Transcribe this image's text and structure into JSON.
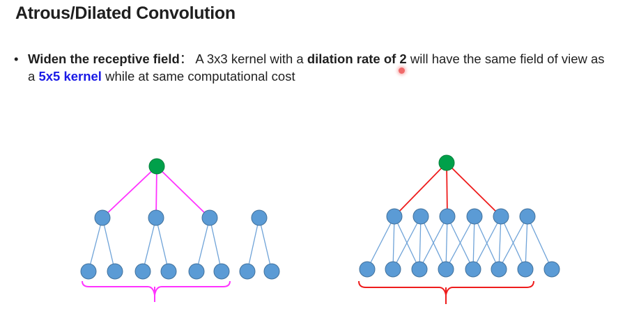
{
  "slide": {
    "title": "Atrous/Dilated Convolution",
    "bullet": {
      "marker": "•",
      "lead": "Widen the receptive field",
      "sep": "：",
      "t1": " A 3x3 kernel with a ",
      "em1": "dilation rate of 2",
      "t2": " will have the same field of view as a ",
      "em2": "5x5 kernel",
      "t3": " while at same computational cost"
    }
  },
  "colors": {
    "node": "#5b9bd5",
    "node_stroke": "#41719c",
    "top_node": "#00a04a",
    "edge": "#6fa3d8",
    "dilated_edge": "#ff33ff",
    "dense_edge": "#ee1c1c"
  }
}
